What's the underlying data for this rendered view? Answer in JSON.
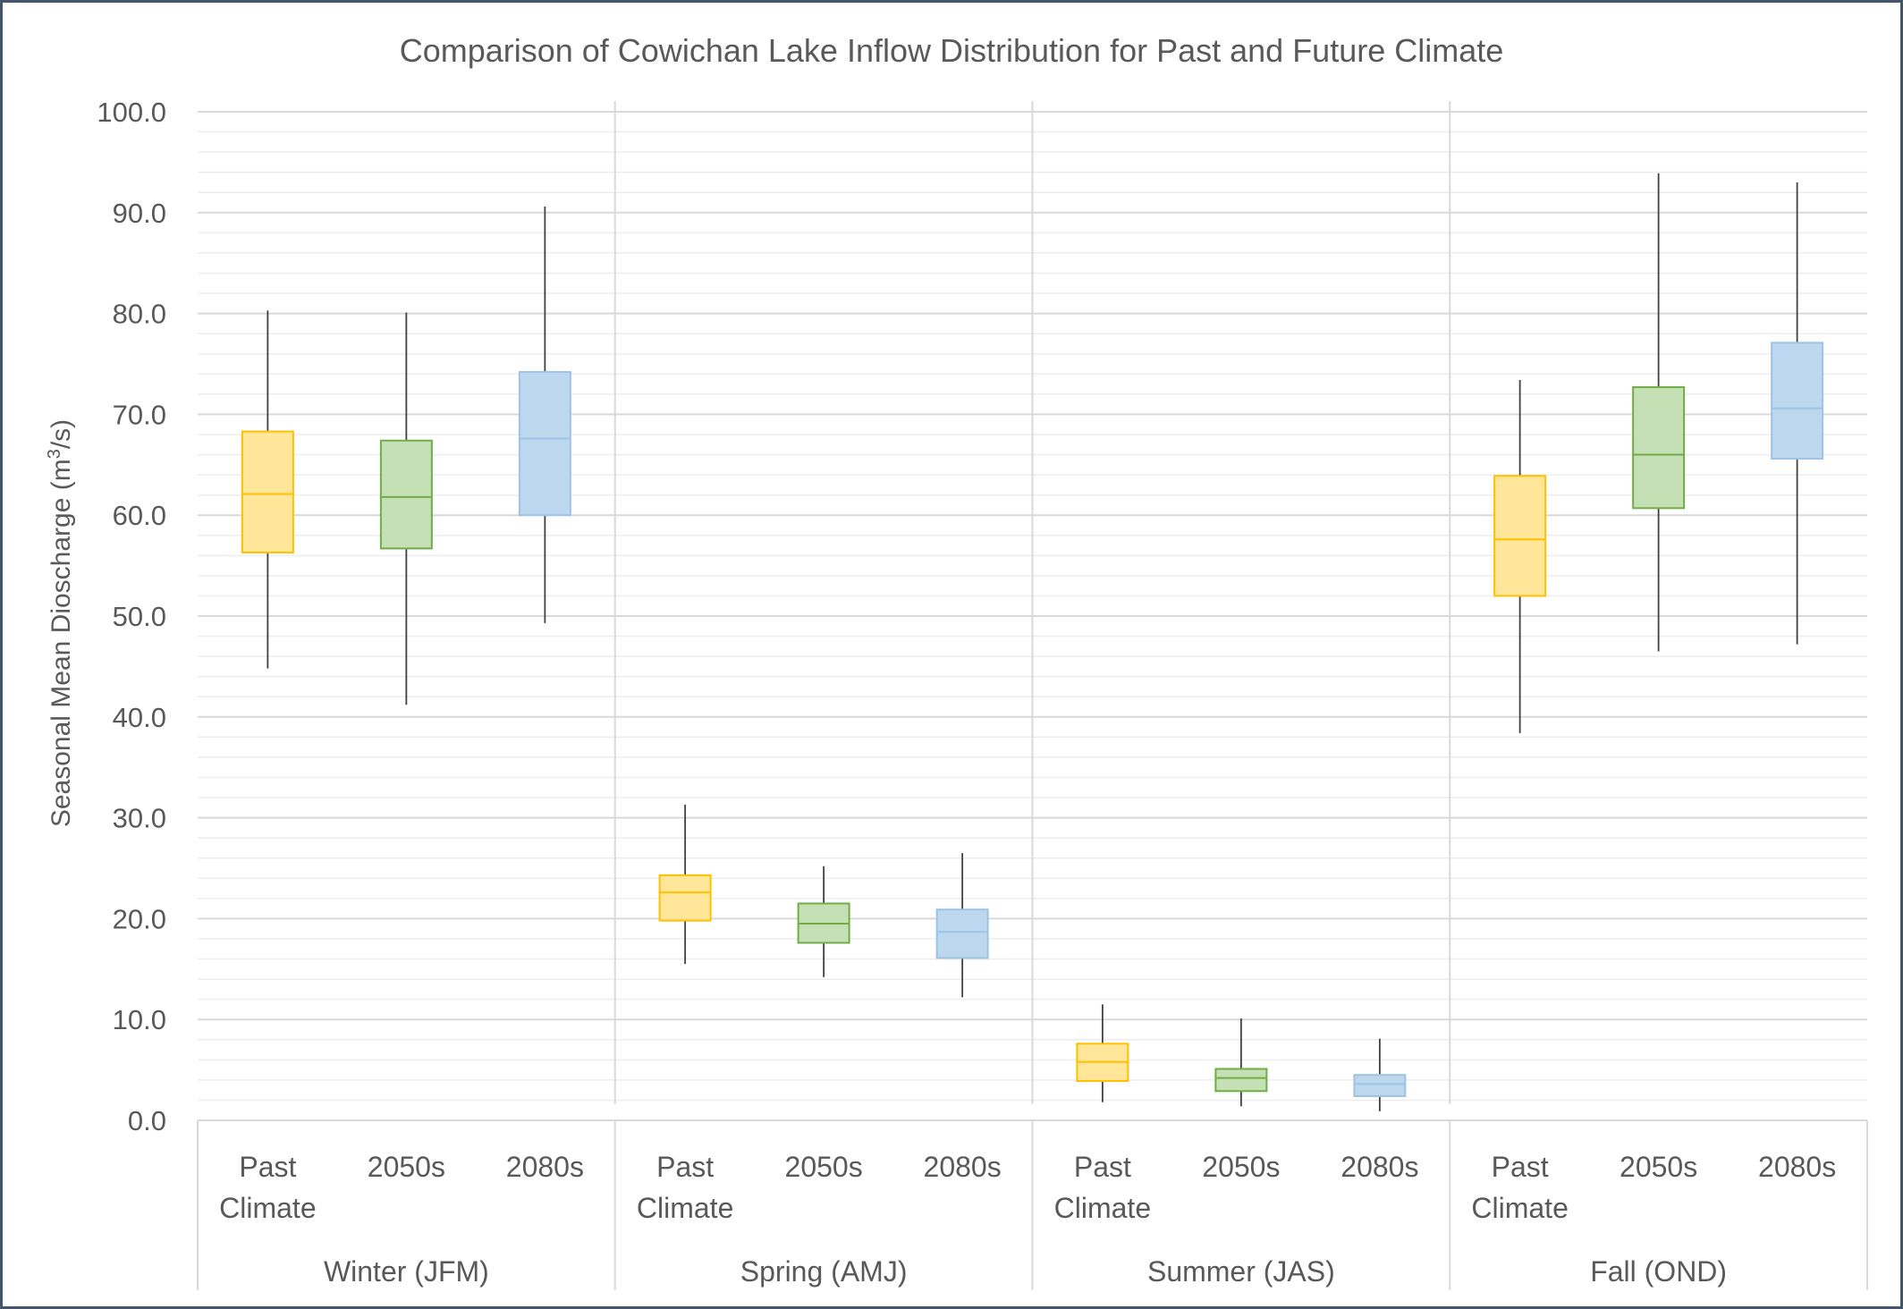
{
  "chart_data": {
    "type": "box",
    "title": "Comparison of Cowichan Lake Inflow Distribution for Past and Future Climate",
    "ylabel_parts": [
      "Seasonal Mean Dioscharge (m",
      "3",
      "/s)"
    ],
    "ylim": [
      0,
      100
    ],
    "major_ticks": [
      "0.0",
      "10.0",
      "20.0",
      "30.0",
      "40.0",
      "50.0",
      "60.0",
      "70.0",
      "80.0",
      "90.0",
      "100.0"
    ],
    "minor_gridlines": true,
    "major_gridlines": true,
    "groups": [
      {
        "name": "Winter (JFM)",
        "boxes": [
          {
            "label": [
              "Past",
              "Climate"
            ],
            "series": "Past Climate",
            "min": 44.8,
            "q1": 56.3,
            "median": 62.1,
            "q3": 68.3,
            "max": 80.3
          },
          {
            "label": [
              "2050s"
            ],
            "series": "2050s",
            "min": 41.2,
            "q1": 56.7,
            "median": 61.8,
            "q3": 67.4,
            "max": 80.1
          },
          {
            "label": [
              "2080s"
            ],
            "series": "2080s",
            "min": 49.3,
            "q1": 60.0,
            "median": 67.6,
            "q3": 74.2,
            "max": 90.6
          }
        ]
      },
      {
        "name": "Spring (AMJ)",
        "boxes": [
          {
            "label": [
              "Past",
              "Climate"
            ],
            "series": "Past Climate",
            "min": 15.5,
            "q1": 19.8,
            "median": 22.6,
            "q3": 24.3,
            "max": 31.3
          },
          {
            "label": [
              "2050s"
            ],
            "series": "2050s",
            "min": 14.2,
            "q1": 17.6,
            "median": 19.5,
            "q3": 21.5,
            "max": 25.2
          },
          {
            "label": [
              "2080s"
            ],
            "series": "2080s",
            "min": 12.2,
            "q1": 16.1,
            "median": 18.7,
            "q3": 20.9,
            "max": 26.5
          }
        ]
      },
      {
        "name": "Summer (JAS)",
        "boxes": [
          {
            "label": [
              "Past",
              "Climate"
            ],
            "series": "Past Climate",
            "min": 1.8,
            "q1": 3.9,
            "median": 5.8,
            "q3": 7.6,
            "max": 11.5
          },
          {
            "label": [
              "2050s"
            ],
            "series": "2050s",
            "min": 1.4,
            "q1": 2.9,
            "median": 4.2,
            "q3": 5.1,
            "max": 10.1
          },
          {
            "label": [
              "2080s"
            ],
            "series": "2080s",
            "min": 0.9,
            "q1": 2.4,
            "median": 3.6,
            "q3": 4.5,
            "max": 8.1
          }
        ]
      },
      {
        "name": "Fall (OND)",
        "boxes": [
          {
            "label": [
              "Past",
              "Climate"
            ],
            "series": "Past Climate",
            "min": 38.4,
            "q1": 52.0,
            "median": 57.6,
            "q3": 63.9,
            "max": 73.4
          },
          {
            "label": [
              "2050s"
            ],
            "series": "2050s",
            "min": 46.5,
            "q1": 60.7,
            "median": 66.0,
            "q3": 72.7,
            "max": 93.9
          },
          {
            "label": [
              "2080s"
            ],
            "series": "2080s",
            "min": 47.2,
            "q1": 65.6,
            "median": 70.6,
            "q3": 77.1,
            "max": 93.0
          }
        ]
      }
    ],
    "series_styles": {
      "Past Climate": {
        "fill": "#FFE699",
        "stroke": "#FFC000"
      },
      "2050s": {
        "fill": "#C5E0B4",
        "stroke": "#70AD47"
      },
      "2080s": {
        "fill": "#BDD7EE",
        "stroke": "#9DC3E6"
      }
    },
    "colors": {
      "text": "#595959",
      "grid_major": "#D9D9D9",
      "grid_minor": "#EDEDED",
      "whisker": "#404040",
      "frame_border": "#44546A"
    }
  }
}
